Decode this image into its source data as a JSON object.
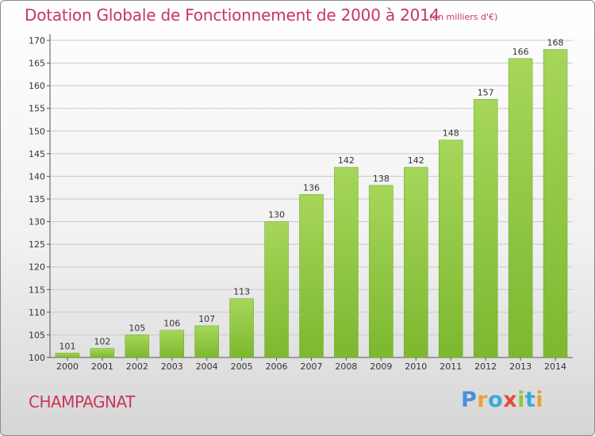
{
  "header": {
    "title": "Dotation Globale de Fonctionnement de 2000 à 2014",
    "subtitle": "(en milliers d'€)"
  },
  "footer": {
    "commune": "CHAMPAGNAT",
    "logo_text": "Proxiti",
    "logo_colors": [
      "#4a90d9",
      "#e8a23a",
      "#3aa9d9",
      "#e84a3a",
      "#8cc63f",
      "#3aa9d9",
      "#e8a23a"
    ]
  },
  "chart_data": {
    "type": "bar",
    "categories": [
      "2000",
      "2001",
      "2002",
      "2003",
      "2004",
      "2005",
      "2006",
      "2007",
      "2008",
      "2009",
      "2010",
      "2011",
      "2012",
      "2013",
      "2014"
    ],
    "values": [
      101,
      102,
      105,
      106,
      107,
      113,
      130,
      136,
      142,
      138,
      142,
      148,
      157,
      166,
      168
    ],
    "ylim": [
      100,
      170
    ],
    "yticks": [
      100,
      105,
      110,
      115,
      120,
      125,
      130,
      135,
      140,
      145,
      150,
      155,
      160,
      165,
      170
    ],
    "grid": true,
    "bar_color": "#7cb82f",
    "bar_color_light": "#a6d65a"
  }
}
